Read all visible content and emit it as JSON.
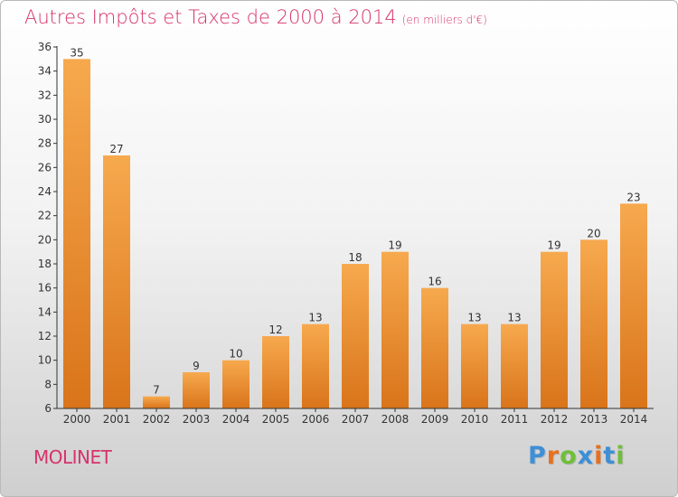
{
  "title": "Autres Impôts et Taxes de 2000 à 2014",
  "subtitle": "(en milliers d'€)",
  "place": "MOLINET",
  "brand": {
    "text": "Proxiti",
    "colors": [
      "#3d8fd6",
      "#e8701e",
      "#6fbf3a",
      "#3d8fd6",
      "#e8701e",
      "#3d8fd6",
      "#6fbf3a"
    ]
  },
  "colors": {
    "bar_top": "#f7a94e",
    "bar_bottom": "#d9741a",
    "title": "#d6336c",
    "axis": "#333333"
  },
  "chart_data": {
    "type": "bar",
    "categories": [
      "2000",
      "2001",
      "2002",
      "2003",
      "2004",
      "2005",
      "2006",
      "2007",
      "2008",
      "2009",
      "2010",
      "2011",
      "2012",
      "2013",
      "2014"
    ],
    "values": [
      35,
      27,
      7,
      9,
      10,
      12,
      13,
      18,
      19,
      16,
      13,
      13,
      19,
      20,
      23
    ],
    "ylim": [
      6,
      36
    ],
    "yticks": [
      6,
      8,
      10,
      12,
      14,
      16,
      18,
      20,
      22,
      24,
      26,
      28,
      30,
      32,
      34,
      36
    ],
    "grid": false,
    "legend": "none"
  }
}
